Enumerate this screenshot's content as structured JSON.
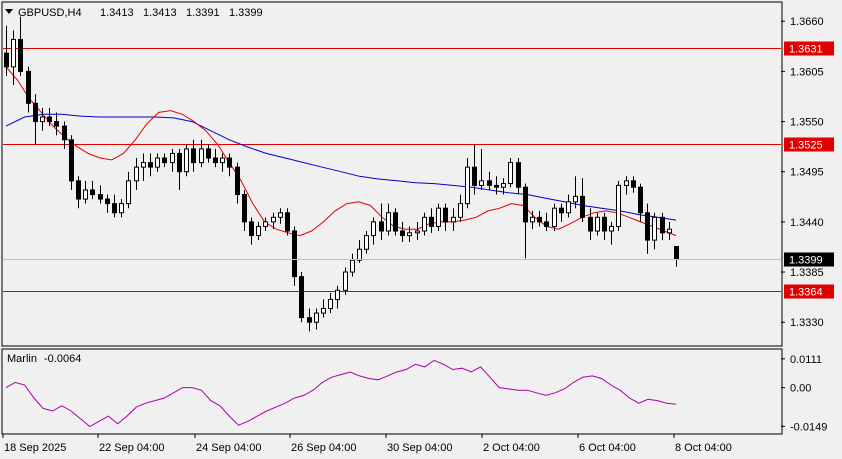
{
  "header": {
    "symbol": "GBPUSD,H4",
    "open": "1.3413",
    "high": "1.3413",
    "low": "1.3391",
    "close": "1.3399"
  },
  "indicator": {
    "name": "Marlin",
    "value": "-0.0064",
    "axis_labels": [
      "0.0111",
      "0.00",
      "-0.0149"
    ]
  },
  "price_axis": {
    "labels": [
      "1.3660",
      "1.3605",
      "1.3550",
      "1.3495",
      "1.3440",
      "1.3385",
      "1.3330"
    ]
  },
  "levels": [
    {
      "value": 1.3631,
      "label": "1.3631",
      "color": "#e00000"
    },
    {
      "value": 1.3525,
      "label": "1.3525",
      "color": "#e00000"
    },
    {
      "value": 1.3364,
      "label": "1.3364",
      "color": "#e00000"
    }
  ],
  "current_price": {
    "value": 1.3399,
    "label": "1.3399"
  },
  "time_axis": {
    "labels": [
      "18 Sep 2025",
      "22 Sep 04:00",
      "24 Sep 04:00",
      "26 Sep 04:00",
      "30 Sep 04:00",
      "2 Oct 04:00",
      "6 Oct 04:00",
      "8 Oct 04:00"
    ]
  },
  "colors": {
    "ma_fast": "#e00000",
    "ma_slow": "#0000cc",
    "oscillator": "#aa00aa",
    "candle": "#000000"
  },
  "chart_data": {
    "type": "candlestick",
    "price_range": [
      1.3305,
      1.368
    ],
    "oscillator_range": [
      -0.0175,
      0.0145
    ],
    "candles": [
      [
        1.3625,
        1.3655,
        1.36,
        1.361
      ],
      [
        1.361,
        1.365,
        1.359,
        1.364
      ],
      [
        1.364,
        1.3665,
        1.36,
        1.3605
      ],
      [
        1.3605,
        1.361,
        1.356,
        1.357
      ],
      [
        1.357,
        1.358,
        1.3525,
        1.355
      ],
      [
        1.355,
        1.3565,
        1.354,
        1.3555
      ],
      [
        1.3555,
        1.3565,
        1.3545,
        1.355
      ],
      [
        1.355,
        1.356,
        1.3535,
        1.3545
      ],
      [
        1.3545,
        1.355,
        1.352,
        1.353
      ],
      [
        1.353,
        1.3535,
        1.3475,
        1.3485
      ],
      [
        1.3485,
        1.349,
        1.3455,
        1.3465
      ],
      [
        1.3465,
        1.3485,
        1.346,
        1.3475
      ],
      [
        1.3475,
        1.3485,
        1.3465,
        1.347
      ],
      [
        1.347,
        1.348,
        1.346,
        1.3465
      ],
      [
        1.3465,
        1.347,
        1.345,
        1.346
      ],
      [
        1.346,
        1.347,
        1.3445,
        1.345
      ],
      [
        1.345,
        1.3465,
        1.3445,
        1.346
      ],
      [
        1.346,
        1.3495,
        1.3455,
        1.3485
      ],
      [
        1.3485,
        1.351,
        1.3475,
        1.35
      ],
      [
        1.35,
        1.3515,
        1.3485,
        1.3505
      ],
      [
        1.3505,
        1.3515,
        1.349,
        1.35
      ],
      [
        1.35,
        1.3515,
        1.3495,
        1.351
      ],
      [
        1.351,
        1.3515,
        1.35,
        1.3505
      ],
      [
        1.3505,
        1.352,
        1.3495,
        1.3515
      ],
      [
        1.3515,
        1.352,
        1.3475,
        1.3495
      ],
      [
        1.3495,
        1.3525,
        1.349,
        1.352
      ],
      [
        1.352,
        1.353,
        1.3495,
        1.3505
      ],
      [
        1.3505,
        1.353,
        1.35,
        1.352
      ],
      [
        1.352,
        1.3525,
        1.3505,
        1.351
      ],
      [
        1.351,
        1.352,
        1.35,
        1.3505
      ],
      [
        1.3505,
        1.3515,
        1.3495,
        1.351
      ],
      [
        1.351,
        1.3515,
        1.349,
        1.35
      ],
      [
        1.35,
        1.3505,
        1.346,
        1.347
      ],
      [
        1.347,
        1.3475,
        1.343,
        1.344
      ],
      [
        1.344,
        1.3445,
        1.3415,
        1.3425
      ],
      [
        1.3425,
        1.344,
        1.342,
        1.3435
      ],
      [
        1.3435,
        1.3445,
        1.343,
        1.344
      ],
      [
        1.344,
        1.345,
        1.3432,
        1.3445
      ],
      [
        1.3445,
        1.3455,
        1.3438,
        1.345
      ],
      [
        1.345,
        1.3455,
        1.3425,
        1.343
      ],
      [
        1.343,
        1.3435,
        1.337,
        1.338
      ],
      [
        1.338,
        1.3385,
        1.333,
        1.3335
      ],
      [
        1.3335,
        1.3345,
        1.332,
        1.333
      ],
      [
        1.333,
        1.3345,
        1.3322,
        1.334
      ],
      [
        1.334,
        1.3355,
        1.3335,
        1.3345
      ],
      [
        1.3345,
        1.3362,
        1.334,
        1.3355
      ],
      [
        1.3355,
        1.337,
        1.3345,
        1.3365
      ],
      [
        1.3365,
        1.339,
        1.336,
        1.3385
      ],
      [
        1.3385,
        1.3405,
        1.338,
        1.3398
      ],
      [
        1.3398,
        1.342,
        1.3395,
        1.341
      ],
      [
        1.341,
        1.343,
        1.3405,
        1.3425
      ],
      [
        1.3425,
        1.3445,
        1.3415,
        1.344
      ],
      [
        1.344,
        1.346,
        1.342,
        1.343
      ],
      [
        1.343,
        1.346,
        1.3425,
        1.345
      ],
      [
        1.345,
        1.3455,
        1.3425,
        1.343
      ],
      [
        1.343,
        1.344,
        1.3418,
        1.3425
      ],
      [
        1.3425,
        1.3435,
        1.3418,
        1.3428
      ],
      [
        1.3428,
        1.344,
        1.342,
        1.343
      ],
      [
        1.343,
        1.345,
        1.3425,
        1.3445
      ],
      [
        1.3445,
        1.3455,
        1.3428,
        1.3435
      ],
      [
        1.3435,
        1.346,
        1.343,
        1.3455
      ],
      [
        1.3455,
        1.346,
        1.343,
        1.344
      ],
      [
        1.344,
        1.3455,
        1.343,
        1.3445
      ],
      [
        1.3445,
        1.347,
        1.344,
        1.346
      ],
      [
        1.346,
        1.351,
        1.3455,
        1.35
      ],
      [
        1.35,
        1.3525,
        1.347,
        1.348
      ],
      [
        1.348,
        1.352,
        1.3475,
        1.3485
      ],
      [
        1.3485,
        1.3495,
        1.3475,
        1.348
      ],
      [
        1.348,
        1.349,
        1.347,
        1.3478
      ],
      [
        1.3478,
        1.3488,
        1.347,
        1.3482
      ],
      [
        1.3482,
        1.351,
        1.3478,
        1.3505
      ],
      [
        1.3505,
        1.351,
        1.347,
        1.3478
      ],
      [
        1.3478,
        1.3482,
        1.34,
        1.344
      ],
      [
        1.344,
        1.3452,
        1.3432,
        1.3445
      ],
      [
        1.3445,
        1.3452,
        1.3435,
        1.344
      ],
      [
        1.344,
        1.345,
        1.343,
        1.3435
      ],
      [
        1.3435,
        1.346,
        1.343,
        1.3455
      ],
      [
        1.3455,
        1.346,
        1.344,
        1.345
      ],
      [
        1.345,
        1.347,
        1.3445,
        1.3462
      ],
      [
        1.3462,
        1.349,
        1.3455,
        1.3468
      ],
      [
        1.3468,
        1.3488,
        1.344,
        1.3445
      ],
      [
        1.3445,
        1.3455,
        1.342,
        1.343
      ],
      [
        1.343,
        1.345,
        1.3425,
        1.3445
      ],
      [
        1.3445,
        1.345,
        1.342,
        1.343
      ],
      [
        1.343,
        1.344,
        1.3415,
        1.3435
      ],
      [
        1.3435,
        1.3485,
        1.343,
        1.348
      ],
      [
        1.348,
        1.349,
        1.347,
        1.3485
      ],
      [
        1.3485,
        1.349,
        1.3472,
        1.3478
      ],
      [
        1.3478,
        1.3482,
        1.344,
        1.345
      ],
      [
        1.345,
        1.346,
        1.3405,
        1.342
      ],
      [
        1.342,
        1.345,
        1.341,
        1.3445
      ],
      [
        1.3445,
        1.345,
        1.342,
        1.3428
      ],
      [
        1.3428,
        1.344,
        1.342,
        1.3432
      ],
      [
        1.3413,
        1.3413,
        1.3391,
        1.3399
      ]
    ],
    "ma_fast": [
      1.361,
      1.3595,
      1.3575,
      1.356,
      1.3545,
      1.3533,
      1.3523,
      1.3515,
      1.351,
      1.3508,
      1.3515,
      1.353,
      1.3548,
      1.356,
      1.3562,
      1.3558,
      1.355,
      1.354,
      1.3525,
      1.3505,
      1.3485,
      1.346,
      1.344,
      1.3432,
      1.3428,
      1.3425,
      1.343,
      1.344,
      1.3452,
      1.346,
      1.3462,
      1.3458,
      1.3445,
      1.3435,
      1.3432,
      1.3432,
      1.3438,
      1.344,
      1.344,
      1.3442,
      1.3445,
      1.3452,
      1.3455,
      1.346,
      1.3458,
      1.3445,
      1.3435,
      1.3432,
      1.3438,
      1.3445,
      1.345,
      1.3452,
      1.345,
      1.3445,
      1.344,
      1.3435,
      1.343,
      1.3425
    ],
    "ma_slow": [
      1.3545,
      1.3555,
      1.3558,
      1.3558,
      1.3556,
      1.3555,
      1.3555,
      1.3555,
      1.3555,
      1.3554,
      1.355,
      1.354,
      1.353,
      1.3522,
      1.3515,
      1.351,
      1.3505,
      1.35,
      1.3495,
      1.349,
      1.3487,
      1.3485,
      1.3483,
      1.3482,
      1.348,
      1.3478,
      1.3475,
      1.3472,
      1.347,
      1.3466,
      1.3462,
      1.3458,
      1.3455,
      1.3452,
      1.3448,
      1.3445,
      1.3442
    ],
    "oscillator": [
      0.0,
      0.002,
      0.001,
      -0.004,
      -0.008,
      -0.009,
      -0.007,
      -0.009,
      -0.012,
      -0.015,
      -0.013,
      -0.011,
      -0.014,
      -0.011,
      -0.0075,
      -0.006,
      -0.005,
      -0.004,
      -0.002,
      0.0,
      0.0,
      -0.001,
      -0.005,
      -0.007,
      -0.011,
      -0.0145,
      -0.013,
      -0.011,
      -0.009,
      -0.0075,
      -0.006,
      -0.004,
      -0.003,
      -0.001,
      0.002,
      0.004,
      0.005,
      0.006,
      0.0045,
      0.0035,
      0.003,
      0.0045,
      0.006,
      0.007,
      0.009,
      0.008,
      0.0105,
      0.009,
      0.007,
      0.0075,
      0.006,
      0.008,
      0.004,
      0.0,
      -0.0005,
      -0.001,
      -0.001,
      -0.002,
      -0.003,
      -0.002,
      -0.0005,
      0.002,
      0.004,
      0.0045,
      0.0035,
      0.001,
      -0.001,
      -0.004,
      -0.006,
      -0.0045,
      -0.005,
      -0.006,
      -0.0064
    ]
  }
}
